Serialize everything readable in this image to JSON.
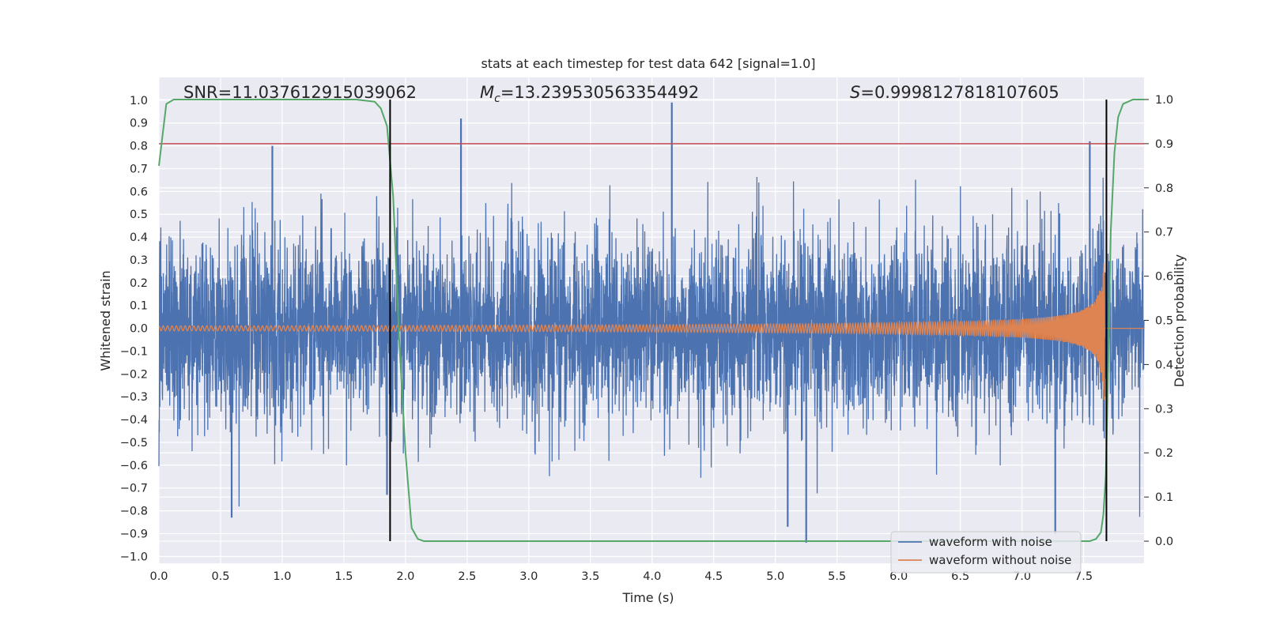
{
  "chart_data": {
    "type": "line",
    "title": "stats at each timestep for test data 642 [signal=1.0]",
    "xlabel": "Time (s)",
    "ylabel": "Whitened strain",
    "y2label": "Detection probability",
    "annotations": {
      "snr": "SNR=11.037612915039062",
      "mc_symbol": "M",
      "mc_sub": "c",
      "mc_value": "=13.239530563354492",
      "s_symbol": "S",
      "s_value": "=0.9998127818107605"
    },
    "xlim": [
      0.0,
      7.99
    ],
    "ylim": [
      -1.03,
      1.1
    ],
    "y2lim": [
      -0.05,
      1.05
    ],
    "xticks": [
      "0.0",
      "0.5",
      "1.0",
      "1.5",
      "2.0",
      "2.5",
      "3.0",
      "3.5",
      "4.0",
      "4.5",
      "5.0",
      "5.5",
      "6.0",
      "6.5",
      "7.0",
      "7.5"
    ],
    "yticks": [
      "1.0",
      "0.9",
      "0.8",
      "0.7",
      "0.6",
      "0.5",
      "0.4",
      "0.3",
      "0.2",
      "0.1",
      "0.0",
      "−0.1",
      "−0.2",
      "−0.3",
      "−0.4",
      "−0.5",
      "−0.6",
      "−0.7",
      "−0.8",
      "−0.9",
      "−1.0"
    ],
    "y2ticks": [
      "1.0",
      "0.9",
      "0.8",
      "0.7",
      "0.6",
      "0.5",
      "0.4",
      "0.3",
      "0.2",
      "0.1",
      "0.0"
    ],
    "grid": true,
    "legend_position": "lower-right",
    "series": [
      {
        "name": "waveform with noise",
        "color": "#4c72b0",
        "noise_std": 0.2
      },
      {
        "name": "waveform without noise",
        "color": "#dd8452",
        "merger_time": 7.67,
        "peak_amplitude": 0.38
      },
      {
        "color": "#55a868",
        "axis": "right",
        "x": [
          0.0,
          0.06,
          0.12,
          0.3,
          0.8,
          1.2,
          1.6,
          1.75,
          1.8,
          1.85,
          1.9,
          1.95,
          2.0,
          2.05,
          2.1,
          2.15,
          2.5,
          3.0,
          4.0,
          5.0,
          6.0,
          7.0,
          7.4,
          7.55,
          7.6,
          7.64,
          7.66,
          7.68,
          7.7,
          7.72,
          7.75,
          7.78,
          7.82,
          7.9,
          7.99
        ],
        "y": [
          0.85,
          0.99,
          1.0,
          1.0,
          1.0,
          1.0,
          1.0,
          0.995,
          0.98,
          0.94,
          0.78,
          0.45,
          0.2,
          0.03,
          0.005,
          0.0,
          0.0,
          0.0,
          0.0,
          0.0,
          0.0,
          0.0,
          0.0,
          0.0,
          0.005,
          0.02,
          0.06,
          0.15,
          0.4,
          0.7,
          0.88,
          0.96,
          0.99,
          1.0,
          1.0
        ]
      },
      {
        "color": "#c44e52",
        "axis": "right",
        "type": "hline",
        "value": 0.9
      }
    ],
    "vlines": [
      1.875,
      7.685
    ],
    "markers": [
      {
        "x": 0.92,
        "y": 0.8
      },
      {
        "x": 2.45,
        "y": 0.92
      },
      {
        "x": 4.16,
        "y": 0.99
      },
      {
        "x": 7.55,
        "y": 0.82
      },
      {
        "x": 0.59,
        "y": -0.83
      },
      {
        "x": 5.25,
        "y": -0.94
      },
      {
        "x": 7.27,
        "y": -0.9
      },
      {
        "x": 1.85,
        "y": -0.73
      },
      {
        "x": 5.1,
        "y": -0.87
      }
    ]
  }
}
